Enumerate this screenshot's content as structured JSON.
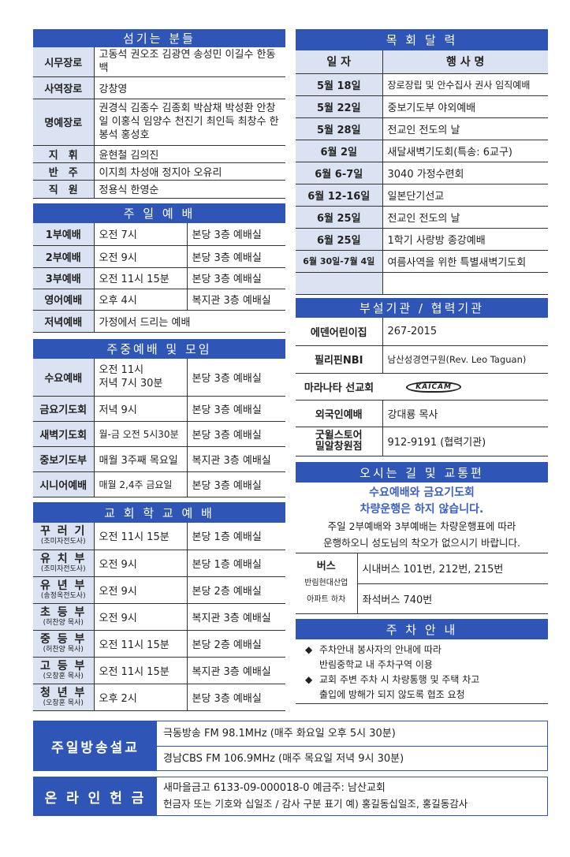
{
  "servers": {
    "title": "섬기는 분들",
    "rows": [
      {
        "label": "시무장로",
        "value": "고동석 권오조 김광연 송성민 이길수 한동백"
      },
      {
        "label": "사역장로",
        "value": "강창영"
      },
      {
        "label": "명예장로",
        "value": "권경식 김종수 김종회 박삼채 박성환 안창일 이홍식 임양수 천진기 최인득 최창수 한봉석 홍성호"
      },
      {
        "label": "지　휘",
        "value": "윤현철 김의진"
      },
      {
        "label": "반　주",
        "value": "이지희 차성애 정지아 오유리"
      },
      {
        "label": "직　원",
        "value": "정용식 한영순"
      }
    ]
  },
  "sunday": {
    "title": "주 일 예 배",
    "rows": [
      {
        "label": "1부예배",
        "time": "오전 7시",
        "place": "본당 3층 예배실"
      },
      {
        "label": "2부예배",
        "time": "오전 9시",
        "place": "본당 3층 예배실"
      },
      {
        "label": "3부예배",
        "time": "오전 11시 15분",
        "place": "본당 3층 예배실"
      },
      {
        "label": "영어예배",
        "time": "오후 4시",
        "place": "복지관 3층 예배실"
      },
      {
        "label": "저녁예배",
        "time": "가정에서 드리는 예배",
        "place": ""
      }
    ]
  },
  "weekday": {
    "title": "주중예배 및 모임",
    "rows": [
      {
        "label": "수요예배",
        "time": "오전 11시",
        "time2": "저녁 7시 30분",
        "place": "본당 3층 예배실"
      },
      {
        "label": "금요기도회",
        "time": "저녁 9시",
        "place": "본당 3층 예배실"
      },
      {
        "label": "새벽기도회",
        "time": "월-금 오전 5시30분",
        "place": "본당 3층 예배실"
      },
      {
        "label": "중보기도부",
        "time": "매월 3주째 목요일",
        "place": "복지관 3층 예배실"
      },
      {
        "label": "시니어예배",
        "time": "매월 2,4주 금요일",
        "place": "본당 3층 예배실"
      }
    ]
  },
  "school": {
    "title": "교 회 학 교 예 배",
    "rows": [
      {
        "label": "꾸 러 기",
        "leader": "(조미자전도사)",
        "time": "오전 11시 15분",
        "place": "본당 1층 예배실"
      },
      {
        "label": "유 치 부",
        "leader": "(조미자전도사)",
        "time": "오전 9시",
        "place": "본당 1층 예배실"
      },
      {
        "label": "유 년 부",
        "leader": "(송정옥전도사)",
        "time": "오전 9시",
        "place": "본당 2층 예배실"
      },
      {
        "label": "초 등 부",
        "leader": "(허찬양 목사)",
        "time": "오전 9시",
        "place": "복지관 3층 예배실"
      },
      {
        "label": "중 등 부",
        "leader": "(허찬양 목사)",
        "time": "오전 11시 15분",
        "place": "본당 2층 예배실"
      },
      {
        "label": "고 등 부",
        "leader": "(오창훈 목사)",
        "time": "오전 11시 15분",
        "place": "복지관 3층 예배실"
      },
      {
        "label": "청 년 부",
        "leader": "(오창훈 목사)",
        "time": "오후 2시",
        "place": "본당 3층 예배실"
      }
    ]
  },
  "calendar": {
    "title": "목 회 달 력",
    "col_date": "일 자",
    "col_event": "행 사 명",
    "rows": [
      {
        "date": "5월 18일",
        "event": "장로장립 및 안수집사 권사 임직예배"
      },
      {
        "date": "5월 22일",
        "event": "중보기도부 야외예배"
      },
      {
        "date": "5월 28일",
        "event": "전교인 전도의 날"
      },
      {
        "date": "6월 2일",
        "event": "새달새벽기도회(특송: 6교구)"
      },
      {
        "date": "6월 6-7일",
        "event": "3040 가정수련회"
      },
      {
        "date": "6월 12-16일",
        "event": "일본단기선교"
      },
      {
        "date": "6월 25일",
        "event": "전교인 전도의 날"
      },
      {
        "date": "6월 25일",
        "event": "1학기 사랑방 종강예배"
      },
      {
        "date": "6월 30일-7월 4일",
        "event": "여름사역을 위한 특별새벽기도회"
      },
      {
        "date": "",
        "event": ""
      }
    ]
  },
  "affiliates": {
    "title": "부설기관 / 협력기관",
    "rows": [
      {
        "label": "에덴어린이집",
        "value": "267-2015"
      },
      {
        "label": "필리핀NBI",
        "value": "남산성경연구원(Rev. Leo Taguan)"
      },
      {
        "label": "마라나타 선교회",
        "value": "",
        "logo": "KAICAM"
      },
      {
        "label": "외국인예배",
        "value": "강대룡 목사"
      },
      {
        "label": "굿윌스토어",
        "label2": "밀알창원점",
        "value": "912-9191 (협력기관)"
      }
    ]
  },
  "directions": {
    "title": "오시는 길 및 교통편",
    "notice1": "수요예배와 금요기도회",
    "notice2": "차량운행은 하지 않습니다.",
    "info1": "주일 2부예배와 3부예배는 차량운행표에 따라",
    "info2": "운행하오니 성도님의 착오가 없으시기 바랍니다.",
    "bus_label": "버스",
    "bus_stop1": "반림현대산업",
    "bus_stop2": "아파트 하차",
    "bus1": "시내버스 101번, 212번, 215번",
    "bus2": "좌석버스 740번"
  },
  "parking": {
    "title": "주 차 안 내",
    "items": [
      {
        "line1": "주차안내 봉사자의 안내에 따라",
        "line2": "반림중학교 내 주차구역 이용"
      },
      {
        "line1": "교회 주변 주차 시 차량통행 및 주택 차고",
        "line2": "출입에 방해가 되지 않도록 협조 요청"
      }
    ]
  },
  "broadcast": {
    "title": "주일방송설교",
    "line1": "극동방송 FM 98.1MHz (매주 화요일 오후 5시 30분)",
    "line2": "경남CBS FM 106.9MHz (매주 목요일 저녁 9시 30분)"
  },
  "offering": {
    "title": "온 라 인 헌 금",
    "line1": "새마을금고 6133-09-000018-0 예금주: 남산교회",
    "line2": "헌금자 또는 기호와 십일조 / 감사 구분 표기 예) 홍길동십일조, 홍길동감사"
  },
  "colors": {
    "header": "#2f55b6",
    "label_bg": "#dbe3f3",
    "notice": "#3b5fc6"
  }
}
